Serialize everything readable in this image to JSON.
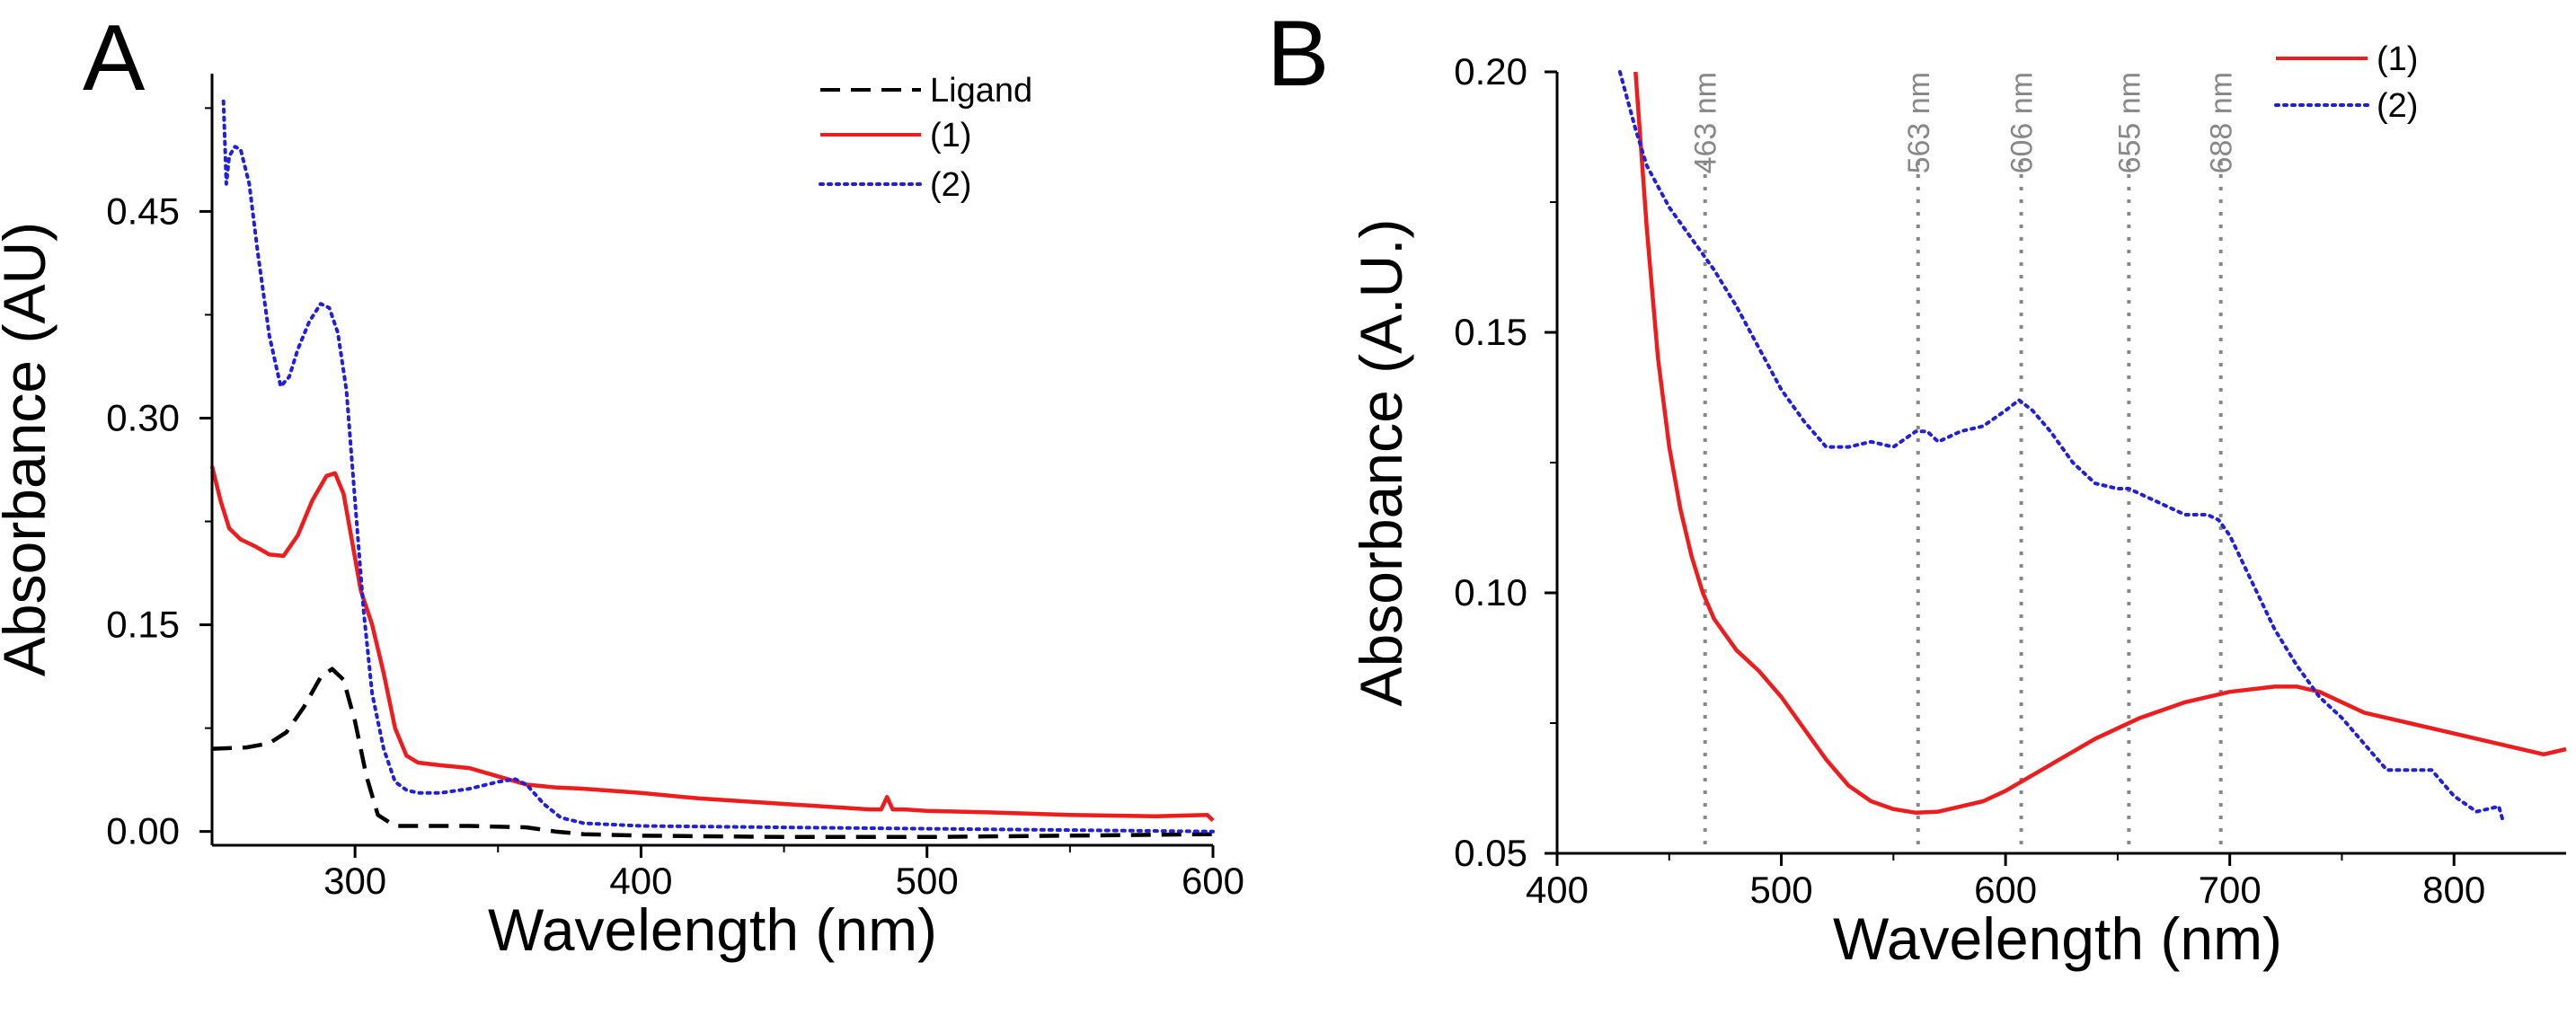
{
  "chart_data": [
    {
      "type": "line",
      "panel_label": "A",
      "title": "",
      "xlabel": "Wavelength (nm)",
      "ylabel": "Absorbance (AU)",
      "xlim": [
        250,
        600
      ],
      "ylim": [
        -0.01,
        0.55
      ],
      "x_ticks": [
        300,
        400,
        500,
        600
      ],
      "x_tick_labels": [
        "300",
        "400",
        "500",
        "600"
      ],
      "y_ticks": [
        0.0,
        0.15,
        0.3,
        0.45
      ],
      "y_tick_labels": [
        "0.00",
        "0.15",
        "0.30",
        "0.45"
      ],
      "legend_position": "top-right",
      "series": [
        {
          "name": "Ligand",
          "color": "#000000",
          "style": "dashed",
          "x": [
            250,
            262,
            270,
            276,
            282,
            288,
            292,
            296,
            300,
            304,
            308,
            314,
            320,
            340,
            360,
            370,
            380,
            400,
            450,
            500,
            550,
            600
          ],
          "y": [
            0.06,
            0.061,
            0.064,
            0.072,
            0.09,
            0.112,
            0.118,
            0.11,
            0.08,
            0.04,
            0.012,
            0.004,
            0.004,
            0.004,
            0.003,
            0.0,
            -0.002,
            -0.003,
            -0.004,
            -0.004,
            -0.003,
            -0.002
          ]
        },
        {
          "name": "(1)",
          "color": "#ee1c1c",
          "style": "solid",
          "x": [
            250,
            253,
            256,
            260,
            265,
            270,
            275,
            280,
            285,
            290,
            293,
            296,
            299,
            302,
            306,
            310,
            314,
            318,
            322,
            330,
            340,
            350,
            360,
            370,
            380,
            400,
            420,
            450,
            480,
            484,
            486,
            488,
            492,
            500,
            520,
            550,
            580,
            598,
            600
          ],
          "y": [
            0.265,
            0.24,
            0.22,
            0.212,
            0.207,
            0.201,
            0.2,
            0.215,
            0.24,
            0.258,
            0.26,
            0.245,
            0.21,
            0.175,
            0.15,
            0.115,
            0.075,
            0.055,
            0.05,
            0.048,
            0.046,
            0.04,
            0.034,
            0.032,
            0.031,
            0.028,
            0.024,
            0.02,
            0.016,
            0.016,
            0.025,
            0.016,
            0.016,
            0.015,
            0.014,
            0.012,
            0.011,
            0.012,
            0.008
          ]
        },
        {
          "name": "(2)",
          "color": "#1f1fdd",
          "style": "dotted",
          "x": [
            254,
            255,
            256,
            258,
            260,
            263,
            266,
            270,
            274,
            277,
            280,
            284,
            288,
            291,
            294,
            297,
            300,
            303,
            306,
            310,
            314,
            318,
            322,
            330,
            340,
            350,
            356,
            360,
            366,
            372,
            380,
            400,
            450,
            500,
            550,
            600
          ],
          "y": [
            0.53,
            0.47,
            0.49,
            0.497,
            0.495,
            0.47,
            0.42,
            0.36,
            0.323,
            0.33,
            0.35,
            0.37,
            0.383,
            0.38,
            0.362,
            0.32,
            0.24,
            0.16,
            0.1,
            0.06,
            0.036,
            0.03,
            0.028,
            0.028,
            0.031,
            0.036,
            0.038,
            0.034,
            0.02,
            0.01,
            0.006,
            0.004,
            0.003,
            0.002,
            0.001,
            0.0
          ]
        }
      ]
    },
    {
      "type": "line",
      "panel_label": "B",
      "title": "",
      "xlabel": "Wavelength (nm)",
      "ylabel": "Absorbance (A.U.)",
      "xlim": [
        400,
        850
      ],
      "ylim": [
        0.05,
        0.2
      ],
      "x_ticks": [
        400,
        500,
        600,
        700,
        800
      ],
      "x_tick_labels": [
        "400",
        "500",
        "600",
        "700",
        "800"
      ],
      "y_ticks": [
        0.05,
        0.1,
        0.15,
        0.2
      ],
      "y_tick_labels": [
        "0.05",
        "0.10",
        "0.15",
        "0.20"
      ],
      "legend_position": "top-right",
      "annotations": [
        {
          "x": 466,
          "text": "463 nm"
        },
        {
          "x": 561,
          "text": "563 nm"
        },
        {
          "x": 607,
          "text": "606 nm"
        },
        {
          "x": 655,
          "text": "655 nm"
        },
        {
          "x": 696,
          "text": "688 nm"
        }
      ],
      "series": [
        {
          "name": "(1)",
          "color": "#ee1c1c",
          "style": "solid",
          "x": [
            435,
            440,
            445,
            450,
            455,
            460,
            465,
            470,
            480,
            490,
            500,
            510,
            520,
            530,
            540,
            550,
            560,
            570,
            580,
            590,
            600,
            620,
            640,
            660,
            680,
            700,
            720,
            730,
            740,
            750,
            760,
            780,
            800,
            820,
            840,
            850
          ],
          "y": [
            0.2,
            0.17,
            0.145,
            0.128,
            0.116,
            0.107,
            0.1,
            0.095,
            0.089,
            0.085,
            0.08,
            0.074,
            0.068,
            0.063,
            0.06,
            0.0585,
            0.0578,
            0.058,
            0.059,
            0.06,
            0.062,
            0.067,
            0.072,
            0.076,
            0.079,
            0.081,
            0.082,
            0.082,
            0.081,
            0.079,
            0.077,
            0.075,
            0.073,
            0.071,
            0.069,
            0.07
          ]
        },
        {
          "name": "(2)",
          "color": "#1f1fdd",
          "style": "dotted",
          "x": [
            428,
            435,
            440,
            450,
            460,
            470,
            480,
            490,
            500,
            510,
            520,
            530,
            540,
            550,
            560,
            565,
            570,
            575,
            580,
            590,
            600,
            606,
            612,
            620,
            630,
            640,
            650,
            655,
            660,
            670,
            680,
            690,
            695,
            700,
            710,
            720,
            730,
            740,
            750,
            760,
            770,
            780,
            790,
            800,
            810,
            820,
            822
          ],
          "y": [
            0.2,
            0.189,
            0.182,
            0.174,
            0.168,
            0.162,
            0.155,
            0.147,
            0.139,
            0.133,
            0.128,
            0.128,
            0.129,
            0.128,
            0.131,
            0.131,
            0.129,
            0.13,
            0.131,
            0.132,
            0.135,
            0.137,
            0.135,
            0.131,
            0.125,
            0.121,
            0.12,
            0.12,
            0.119,
            0.117,
            0.115,
            0.115,
            0.114,
            0.111,
            0.102,
            0.093,
            0.086,
            0.08,
            0.076,
            0.071,
            0.066,
            0.066,
            0.066,
            0.061,
            0.058,
            0.059,
            0.056
          ]
        }
      ]
    }
  ]
}
